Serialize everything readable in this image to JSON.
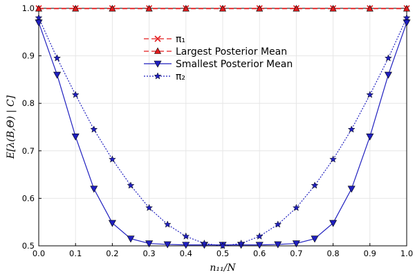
{
  "chart_data": {
    "type": "line",
    "title": "",
    "xlabel": "n₁₁/N",
    "ylabel": "E[λ(B,Θ) | C]",
    "xlim": [
      0.0,
      1.0
    ],
    "ylim": [
      0.5,
      1.0
    ],
    "grid": true,
    "legend_position": "top-center",
    "xticks": [
      "0.0",
      "0.1",
      "0.2",
      "0.3",
      "0.4",
      "0.5",
      "0.6",
      "0.7",
      "0.8",
      "0.9",
      "1.0"
    ],
    "yticks": [
      "0.5",
      "0.6",
      "0.7",
      "0.8",
      "0.9",
      "1.0"
    ],
    "series": [
      {
        "name": "π₁",
        "color": "#e31a1c",
        "line": "dash",
        "marker": "x",
        "x": [
          0.0,
          0.1,
          0.2,
          0.3,
          0.4,
          0.5,
          0.6,
          0.7,
          0.8,
          0.9,
          1.0
        ],
        "y": [
          1.0,
          1.0,
          1.0,
          1.0,
          1.0,
          1.0,
          1.0,
          1.0,
          1.0,
          1.0,
          1.0
        ]
      },
      {
        "name": "Largest Posterior Mean",
        "color": "#e31a1c",
        "line": "dash",
        "marker": "triangle-up",
        "x": [
          0.0,
          0.1,
          0.2,
          0.3,
          0.4,
          0.5,
          0.6,
          0.7,
          0.8,
          0.9,
          1.0
        ],
        "y": [
          0.999,
          0.999,
          0.999,
          0.999,
          0.999,
          0.999,
          0.999,
          0.999,
          0.999,
          0.999,
          0.999
        ]
      },
      {
        "name": "Smallest Posterior Mean",
        "color": "#1f1fbf",
        "line": "solid",
        "marker": "triangle-down",
        "x": [
          0.0,
          0.05,
          0.1,
          0.15,
          0.2,
          0.25,
          0.3,
          0.35,
          0.4,
          0.45,
          0.5,
          0.55,
          0.6,
          0.65,
          0.7,
          0.75,
          0.8,
          0.85,
          0.9,
          0.95,
          1.0
        ],
        "y": [
          0.97,
          0.86,
          0.73,
          0.62,
          0.548,
          0.515,
          0.505,
          0.503,
          0.502,
          0.502,
          0.502,
          0.502,
          0.502,
          0.503,
          0.505,
          0.515,
          0.548,
          0.62,
          0.73,
          0.86,
          0.97
        ]
      },
      {
        "name": "π₂",
        "color": "#1f1fbf",
        "line": "dot",
        "marker": "star",
        "x": [
          0.0,
          0.05,
          0.1,
          0.15,
          0.2,
          0.25,
          0.3,
          0.35,
          0.4,
          0.45,
          0.5,
          0.55,
          0.6,
          0.65,
          0.7,
          0.75,
          0.8,
          0.85,
          0.9,
          0.95,
          1.0
        ],
        "y": [
          0.98,
          0.895,
          0.818,
          0.745,
          0.682,
          0.627,
          0.58,
          0.545,
          0.52,
          0.505,
          0.5,
          0.505,
          0.52,
          0.545,
          0.58,
          0.627,
          0.682,
          0.745,
          0.818,
          0.895,
          0.98
        ]
      }
    ]
  }
}
